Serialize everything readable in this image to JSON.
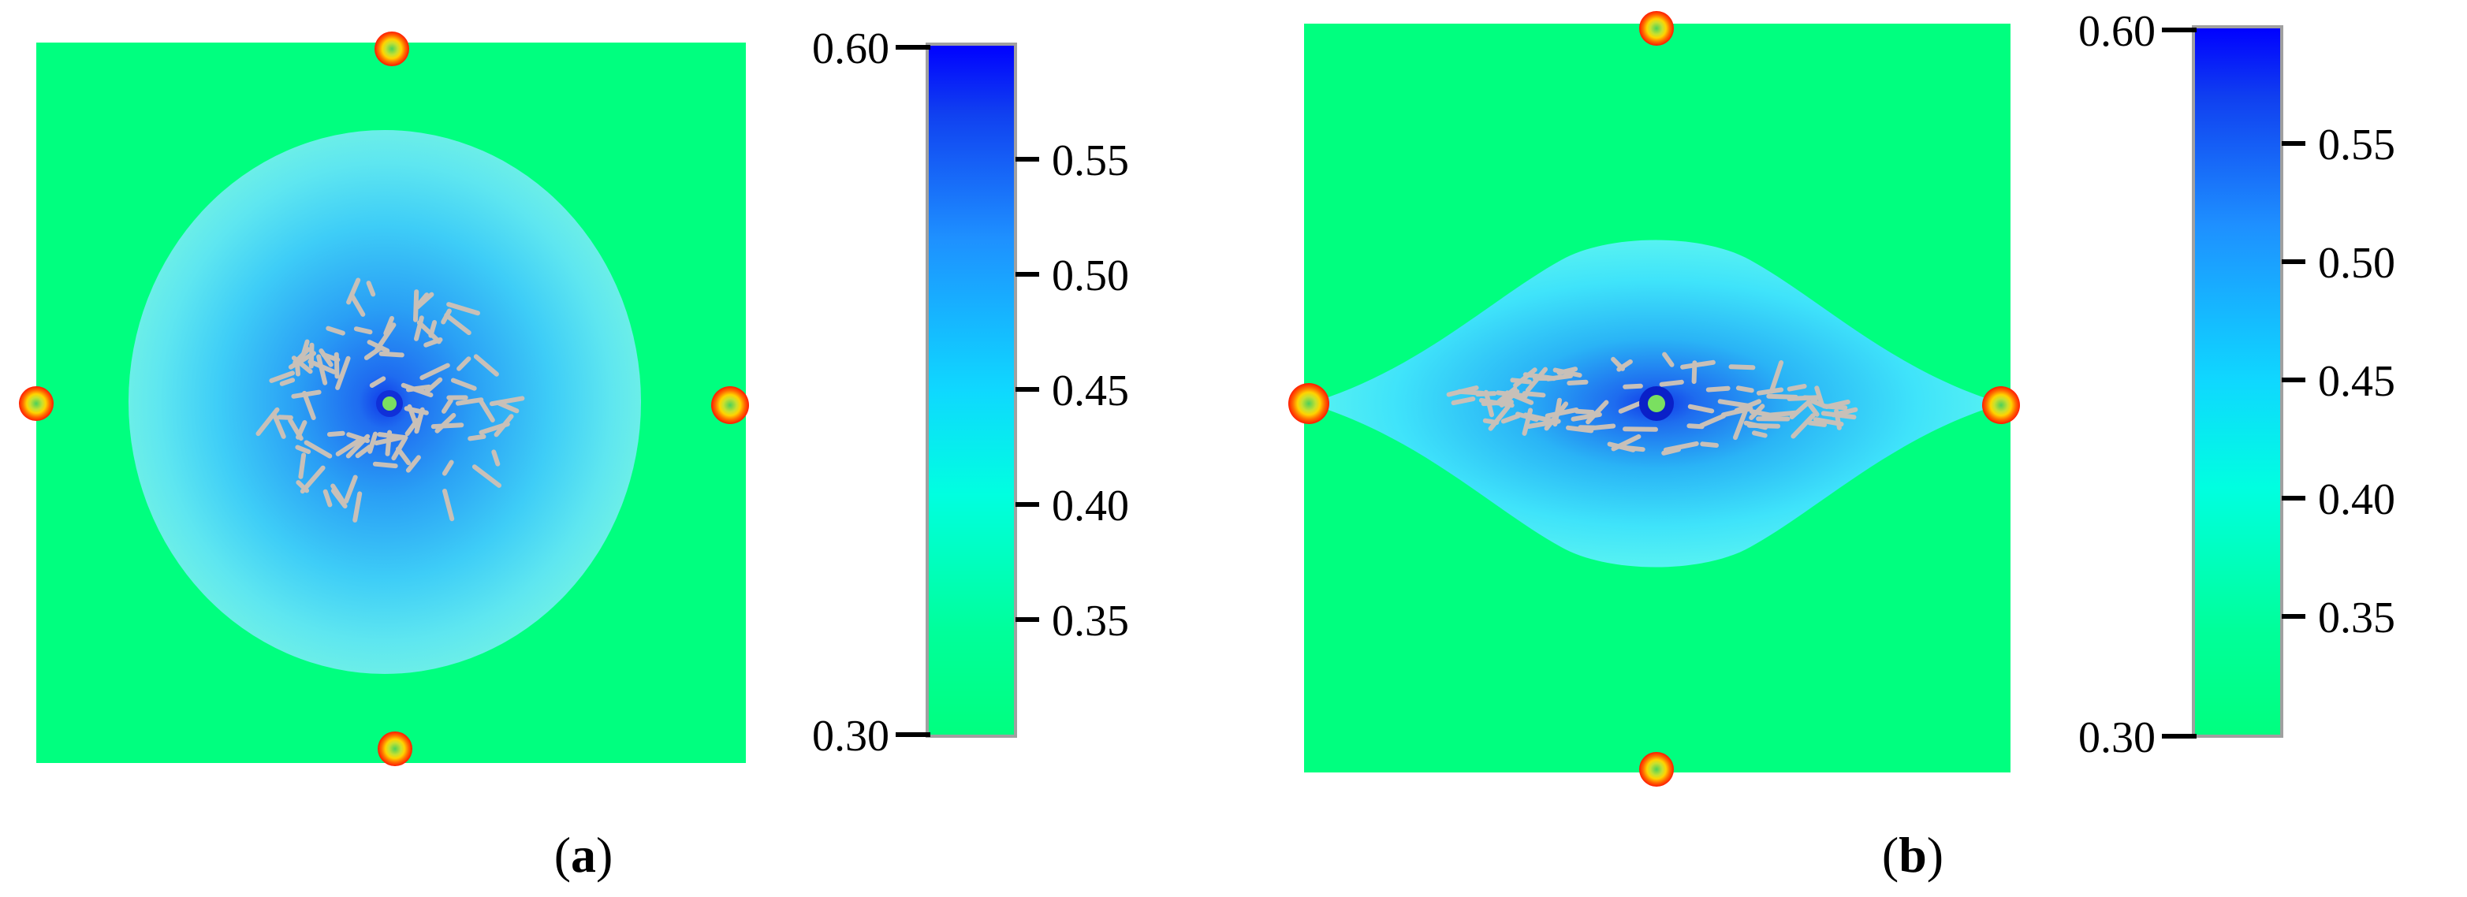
{
  "chart_data": [
    {
      "type": "heatmap",
      "panel_label": "a",
      "title": "",
      "xlabel": "",
      "ylabel": "",
      "colorbar": {
        "range": [
          0.3,
          0.6
        ],
        "ticks": [
          "0.30",
          "0.35",
          "0.40",
          "0.45",
          "0.50",
          "0.55",
          "0.60"
        ],
        "colors": [
          "#00ff7f",
          "#00ffe0",
          "#1e90ff",
          "#0000ff"
        ]
      },
      "field": {
        "background_value": 0.3,
        "center_value": 0.55,
        "region_shape": "ellipse",
        "region_aspect": 1.05
      },
      "well_markers": [
        "top",
        "bottom",
        "left",
        "right"
      ],
      "center_marker": true,
      "fracture_pattern": "random-cluster"
    },
    {
      "type": "heatmap",
      "panel_label": "b",
      "title": "",
      "xlabel": "",
      "ylabel": "",
      "colorbar": {
        "range": [
          0.3,
          0.6
        ],
        "ticks": [
          "0.30",
          "0.35",
          "0.40",
          "0.45",
          "0.50",
          "0.55",
          "0.60"
        ],
        "colors": [
          "#00ff7f",
          "#00ffe0",
          "#1e90ff",
          "#0000ff"
        ]
      },
      "field": {
        "background_value": 0.3,
        "center_value": 0.55,
        "region_shape": "lens",
        "region_aspect": 2.1
      },
      "well_markers": [
        "top",
        "bottom",
        "left",
        "right"
      ],
      "center_marker": true,
      "fracture_pattern": "horizontal-band"
    }
  ]
}
